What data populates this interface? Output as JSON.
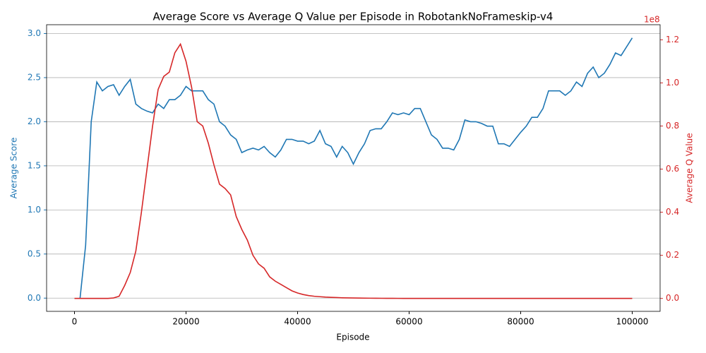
{
  "chart_data": {
    "type": "line",
    "title": "Average Score vs Average Q Value per Episode in RobotankNoFrameskip-v4",
    "x_label": "Episode",
    "y_label": "Average Score",
    "y2_label": "Average Q Value",
    "y2_offset_label": "1e8",
    "x": [
      0,
      1000,
      2000,
      3000,
      4000,
      5000,
      6000,
      7000,
      8000,
      9000,
      10000,
      11000,
      12000,
      13000,
      14000,
      15000,
      16000,
      17000,
      18000,
      19000,
      20000,
      21000,
      22000,
      23000,
      24000,
      25000,
      26000,
      27000,
      28000,
      29000,
      30000,
      31000,
      32000,
      33000,
      34000,
      35000,
      36000,
      37000,
      38000,
      39000,
      40000,
      41000,
      42000,
      43000,
      44000,
      45000,
      46000,
      47000,
      48000,
      49000,
      50000,
      51000,
      52000,
      53000,
      54000,
      55000,
      56000,
      57000,
      58000,
      59000,
      60000,
      61000,
      62000,
      63000,
      64000,
      65000,
      66000,
      67000,
      68000,
      69000,
      70000,
      71000,
      72000,
      73000,
      74000,
      75000,
      76000,
      77000,
      78000,
      79000,
      80000,
      81000,
      82000,
      83000,
      84000,
      85000,
      86000,
      87000,
      88000,
      89000,
      90000,
      91000,
      92000,
      93000,
      94000,
      95000,
      96000,
      97000,
      98000,
      99000,
      100000
    ],
    "series": [
      {
        "name": "Average Score",
        "color": "#1f77b4",
        "axis": "y",
        "values": [
          null,
          0.0,
          0.6,
          2.0,
          2.45,
          2.35,
          2.4,
          2.42,
          2.3,
          2.4,
          2.48,
          2.2,
          2.15,
          2.12,
          2.1,
          2.2,
          2.15,
          2.25,
          2.25,
          2.3,
          2.4,
          2.35,
          2.35,
          2.35,
          2.25,
          2.2,
          2.0,
          1.95,
          1.85,
          1.8,
          1.65,
          1.68,
          1.7,
          1.68,
          1.72,
          1.65,
          1.6,
          1.68,
          1.8,
          1.8,
          1.78,
          1.78,
          1.75,
          1.78,
          1.9,
          1.75,
          1.72,
          1.6,
          1.72,
          1.65,
          1.52,
          1.65,
          1.75,
          1.9,
          1.92,
          1.92,
          2.0,
          2.1,
          2.08,
          2.1,
          2.08,
          2.15,
          2.15,
          2.0,
          1.85,
          1.8,
          1.7,
          1.7,
          1.68,
          1.8,
          2.02,
          2.0,
          2.0,
          1.98,
          1.95,
          1.95,
          1.75,
          1.75,
          1.72,
          1.8,
          1.88,
          1.95,
          2.05,
          2.05,
          2.15,
          2.35,
          2.35,
          2.35,
          2.3,
          2.35,
          2.45,
          2.4,
          2.55,
          2.62,
          2.5,
          2.55,
          2.65,
          2.78,
          2.75,
          2.85,
          2.95
        ]
      },
      {
        "name": "Average Q Value",
        "color": "#d62728",
        "axis": "y2",
        "values": [
          0,
          0,
          0,
          0,
          0,
          0,
          0,
          200000,
          1000000,
          6000000,
          12000000,
          22000000,
          40000000,
          60000000,
          80000000,
          97000000,
          103000000,
          105000000,
          114000000,
          118000000,
          110000000,
          98000000,
          82000000,
          80000000,
          72000000,
          62000000,
          53000000,
          51000000,
          48000000,
          38000000,
          32000000,
          27000000,
          20000000,
          16000000,
          14000000,
          10000000,
          8000000,
          6500000,
          5000000,
          3500000,
          2500000,
          1800000,
          1300000,
          1000000,
          800000,
          600000,
          500000,
          400000,
          300000,
          250000,
          200000,
          150000,
          120000,
          100000,
          80000,
          60000,
          40000,
          30000,
          20000,
          10000,
          0,
          0,
          0,
          0,
          0,
          0,
          0,
          0,
          0,
          0,
          0,
          0,
          0,
          0,
          0,
          0,
          0,
          0,
          0,
          0,
          0,
          0,
          0,
          0,
          0,
          0,
          0,
          0,
          0,
          0,
          0,
          0,
          0,
          0,
          0,
          0,
          0,
          0,
          0,
          0,
          0
        ]
      }
    ],
    "xlim": [
      -5000,
      105000
    ],
    "xticks": [
      0,
      20000,
      40000,
      60000,
      80000,
      100000
    ],
    "ylim": [
      -0.15,
      3.1
    ],
    "yticks": [
      {
        "value": 0,
        "label": "0.0"
      },
      0.5,
      {
        "value": 1,
        "label": "1.0"
      },
      1.5,
      {
        "value": 2,
        "label": "2.0"
      },
      2.5,
      {
        "value": 3,
        "label": "3.0"
      }
    ],
    "y2lim": [
      -6000000,
      127000000
    ],
    "y2ticks": [
      {
        "value": 0,
        "label": "0.0"
      },
      {
        "value": 20000000,
        "label": "0.2"
      },
      {
        "value": 40000000,
        "label": "0.4"
      },
      {
        "value": 60000000,
        "label": "0.6"
      },
      {
        "value": 80000000,
        "label": "0.8"
      },
      {
        "value": 100000000,
        "label": "1.0"
      },
      {
        "value": 120000000,
        "label": "1.2"
      }
    ],
    "grid": true
  }
}
